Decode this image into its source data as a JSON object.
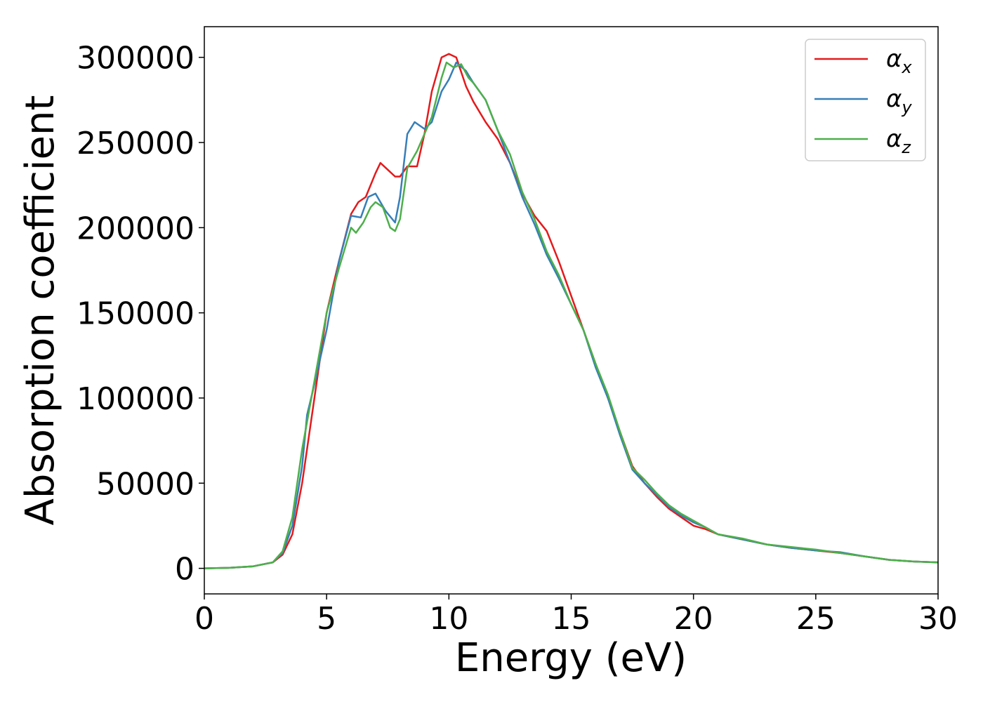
{
  "chart_data": {
    "type": "line",
    "xlabel": "Energy (eV)",
    "ylabel": "Absorption coefficient",
    "xlim": [
      0,
      30
    ],
    "ylim": [
      -15000,
      318000
    ],
    "xticks": [
      0,
      5,
      10,
      15,
      20,
      25,
      30
    ],
    "xtick_labels": [
      "0",
      "5",
      "10",
      "15",
      "20",
      "25",
      "30"
    ],
    "yticks": [
      0,
      50000,
      100000,
      150000,
      200000,
      250000,
      300000
    ],
    "ytick_labels": [
      "0",
      "50000",
      "100000",
      "150000",
      "200000",
      "250000",
      "300000"
    ],
    "grid": false,
    "legend": "top-right",
    "series": [
      {
        "name": "α_x",
        "label_main": "α",
        "label_sub": "x",
        "color": "#e41a1c",
        "points": [
          [
            0,
            0
          ],
          [
            1,
            300
          ],
          [
            2,
            1200
          ],
          [
            2.8,
            3500
          ],
          [
            3.2,
            8000
          ],
          [
            3.6,
            20000
          ],
          [
            4,
            50000
          ],
          [
            4.5,
            100000
          ],
          [
            5,
            150000
          ],
          [
            5.5,
            180000
          ],
          [
            6,
            208000
          ],
          [
            6.3,
            215000
          ],
          [
            6.6,
            218000
          ],
          [
            7,
            232000
          ],
          [
            7.2,
            238000
          ],
          [
            7.5,
            234000
          ],
          [
            7.8,
            230000
          ],
          [
            8,
            230000
          ],
          [
            8.3,
            236000
          ],
          [
            8.7,
            236000
          ],
          [
            9,
            255000
          ],
          [
            9.3,
            280000
          ],
          [
            9.7,
            300000
          ],
          [
            10,
            302000
          ],
          [
            10.3,
            300000
          ],
          [
            10.7,
            283000
          ],
          [
            11,
            274000
          ],
          [
            11.5,
            262000
          ],
          [
            12,
            252000
          ],
          [
            12.5,
            238000
          ],
          [
            13,
            220000
          ],
          [
            13.5,
            207000
          ],
          [
            14,
            198000
          ],
          [
            14.5,
            180000
          ],
          [
            15,
            160000
          ],
          [
            15.5,
            140000
          ],
          [
            16,
            120000
          ],
          [
            16.5,
            100000
          ],
          [
            17,
            80000
          ],
          [
            17.5,
            60000
          ],
          [
            18,
            50000
          ],
          [
            18.5,
            42000
          ],
          [
            19,
            35000
          ],
          [
            19.5,
            30000
          ],
          [
            20,
            25000
          ],
          [
            20.5,
            23000
          ],
          [
            21,
            20000
          ],
          [
            22,
            17000
          ],
          [
            23,
            14000
          ],
          [
            24,
            12000
          ],
          [
            25,
            10500
          ],
          [
            26,
            9000
          ],
          [
            27,
            7000
          ],
          [
            28,
            5000
          ],
          [
            29,
            4000
          ],
          [
            30,
            3500
          ]
        ]
      },
      {
        "name": "α_y",
        "label_main": "α",
        "label_sub": "y",
        "color": "#377eb8",
        "points": [
          [
            0,
            0
          ],
          [
            1,
            300
          ],
          [
            2,
            1200
          ],
          [
            2.8,
            3500
          ],
          [
            3.2,
            9000
          ],
          [
            3.6,
            25000
          ],
          [
            4,
            60000
          ],
          [
            4.2,
            90000
          ],
          [
            4.5,
            108000
          ],
          [
            5,
            140000
          ],
          [
            5.5,
            180000
          ],
          [
            6,
            207000
          ],
          [
            6.4,
            206000
          ],
          [
            6.7,
            218000
          ],
          [
            7,
            220000
          ],
          [
            7.4,
            210000
          ],
          [
            7.8,
            203000
          ],
          [
            8,
            218000
          ],
          [
            8.3,
            255000
          ],
          [
            8.6,
            262000
          ],
          [
            9,
            258000
          ],
          [
            9.3,
            262000
          ],
          [
            9.7,
            280000
          ],
          [
            10,
            287000
          ],
          [
            10.3,
            297000
          ],
          [
            10.7,
            292000
          ],
          [
            11,
            285000
          ],
          [
            11.5,
            275000
          ],
          [
            12,
            257000
          ],
          [
            12.5,
            238000
          ],
          [
            13,
            218000
          ],
          [
            13.5,
            202000
          ],
          [
            14,
            184000
          ],
          [
            14.5,
            170000
          ],
          [
            15,
            155000
          ],
          [
            15.5,
            140000
          ],
          [
            16,
            118000
          ],
          [
            16.5,
            100000
          ],
          [
            17,
            78000
          ],
          [
            17.5,
            58000
          ],
          [
            18,
            50000
          ],
          [
            18.5,
            43000
          ],
          [
            19,
            36000
          ],
          [
            19.5,
            31000
          ],
          [
            20,
            27000
          ],
          [
            20.5,
            24000
          ],
          [
            21,
            20000
          ],
          [
            22,
            17000
          ],
          [
            23,
            14000
          ],
          [
            24,
            12000
          ],
          [
            25,
            10500
          ],
          [
            26,
            9500
          ],
          [
            27,
            7000
          ],
          [
            28,
            5000
          ],
          [
            29,
            4000
          ],
          [
            30,
            3500
          ]
        ]
      },
      {
        "name": "α_z",
        "label_main": "α",
        "label_sub": "z",
        "color": "#4daf4a",
        "points": [
          [
            0,
            0
          ],
          [
            1,
            300
          ],
          [
            2,
            1200
          ],
          [
            2.8,
            3500
          ],
          [
            3.2,
            10000
          ],
          [
            3.6,
            30000
          ],
          [
            4,
            70000
          ],
          [
            4.5,
            110000
          ],
          [
            5,
            150000
          ],
          [
            5.5,
            176000
          ],
          [
            6,
            200000
          ],
          [
            6.2,
            197000
          ],
          [
            6.5,
            203000
          ],
          [
            6.8,
            212000
          ],
          [
            7,
            215000
          ],
          [
            7.3,
            212000
          ],
          [
            7.6,
            200000
          ],
          [
            7.8,
            198000
          ],
          [
            8,
            205000
          ],
          [
            8.3,
            235000
          ],
          [
            8.7,
            245000
          ],
          [
            9,
            255000
          ],
          [
            9.3,
            265000
          ],
          [
            9.7,
            288000
          ],
          [
            9.9,
            297000
          ],
          [
            10.2,
            294000
          ],
          [
            10.5,
            296000
          ],
          [
            10.8,
            288000
          ],
          [
            11,
            285000
          ],
          [
            11.5,
            275000
          ],
          [
            12,
            257000
          ],
          [
            12.5,
            243000
          ],
          [
            13,
            221000
          ],
          [
            13.5,
            205000
          ],
          [
            14,
            186000
          ],
          [
            14.5,
            172000
          ],
          [
            15,
            155000
          ],
          [
            15.5,
            140000
          ],
          [
            16,
            120000
          ],
          [
            16.5,
            102000
          ],
          [
            17,
            80000
          ],
          [
            17.5,
            59000
          ],
          [
            18,
            52000
          ],
          [
            18.5,
            44000
          ],
          [
            19,
            37000
          ],
          [
            19.5,
            32000
          ],
          [
            20,
            28000
          ],
          [
            20.5,
            24000
          ],
          [
            21,
            20000
          ],
          [
            22,
            17500
          ],
          [
            23,
            14000
          ],
          [
            24,
            12500
          ],
          [
            25,
            11000
          ],
          [
            26,
            9000
          ],
          [
            27,
            7000
          ],
          [
            28,
            5000
          ],
          [
            29,
            4000
          ],
          [
            30,
            3500
          ]
        ]
      }
    ]
  }
}
